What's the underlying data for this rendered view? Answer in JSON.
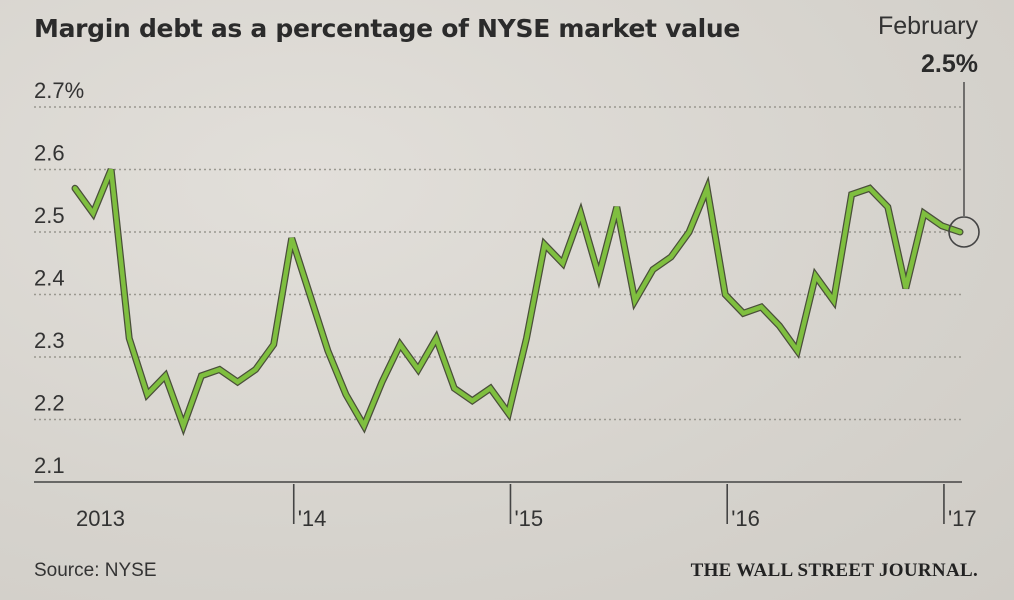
{
  "header": {
    "title": "Margin debt as a percentage of NYSE market value",
    "callout_label": "February",
    "callout_value": "2.5%"
  },
  "footer": {
    "source": "Source: NYSE",
    "credit": "THE WALL STREET JOURNAL."
  },
  "colors": {
    "line": "#7fbf3f",
    "line_outline": "#4a4f3a",
    "grid": "#9a9890",
    "axis": "#444444"
  },
  "chart_data": {
    "type": "line",
    "title": "Margin debt as a percentage of NYSE market value",
    "xlabel": "",
    "ylabel": "",
    "ylim": [
      2.1,
      2.7
    ],
    "yticks": [
      2.7,
      2.6,
      2.5,
      2.4,
      2.3,
      2.2,
      2.1
    ],
    "ytick_labels": [
      "2.7%",
      "2.6",
      "2.5",
      "2.4",
      "2.3",
      "2.2",
      "2.1"
    ],
    "xlim": [
      0,
      49
    ],
    "xticks": [
      {
        "x": 0,
        "label": "2013"
      },
      {
        "x": 12,
        "label": "'14"
      },
      {
        "x": 24,
        "label": "'15"
      },
      {
        "x": 36,
        "label": "'16"
      },
      {
        "x": 48,
        "label": "'17"
      }
    ],
    "annotation": {
      "label": "February",
      "value": "2.5%",
      "x": 49
    },
    "series": [
      {
        "name": "Margin debt %",
        "x": [
          0,
          1,
          2,
          3,
          4,
          5,
          6,
          7,
          8,
          9,
          10,
          11,
          12,
          13,
          14,
          15,
          16,
          17,
          18,
          19,
          20,
          21,
          22,
          23,
          24,
          25,
          26,
          27,
          28,
          29,
          30,
          31,
          32,
          33,
          34,
          35,
          36,
          37,
          38,
          39,
          40,
          41,
          42,
          43,
          44,
          45,
          46,
          47,
          48,
          49
        ],
        "values": [
          2.57,
          2.53,
          2.6,
          2.33,
          2.24,
          2.27,
          2.19,
          2.27,
          2.28,
          2.26,
          2.28,
          2.32,
          2.49,
          2.4,
          2.31,
          2.24,
          2.19,
          2.26,
          2.32,
          2.28,
          2.33,
          2.25,
          2.23,
          2.25,
          2.21,
          2.33,
          2.48,
          2.45,
          2.53,
          2.43,
          2.54,
          2.39,
          2.44,
          2.46,
          2.5,
          2.57,
          2.4,
          2.37,
          2.38,
          2.35,
          2.31,
          2.43,
          2.39,
          2.56,
          2.57,
          2.54,
          2.41,
          2.53,
          2.51,
          2.5
        ]
      }
    ]
  }
}
